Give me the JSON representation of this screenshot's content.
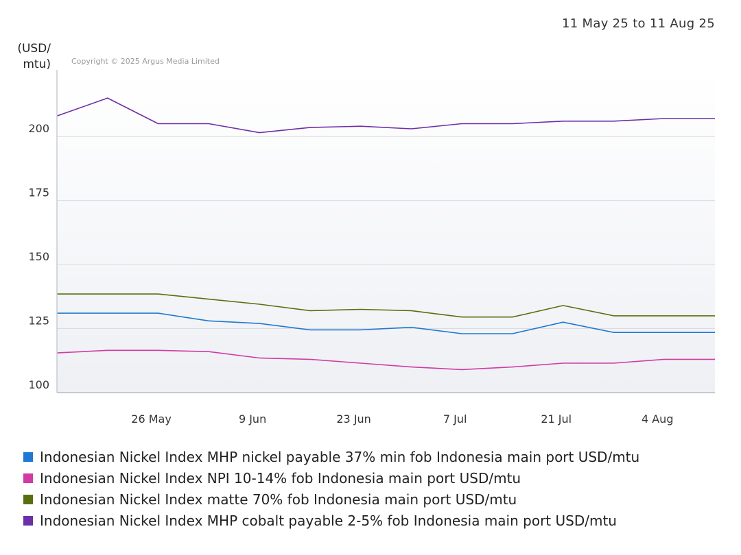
{
  "date_range": "11 May 25 to 11 Aug 25",
  "copyright": "Copyright © 2025 Argus Media Limited",
  "chart_data": {
    "type": "line",
    "ylabel": [
      "(USD/",
      "mtu)"
    ],
    "ylim": [
      100,
      226
    ],
    "y_ticks": [
      100,
      125,
      150,
      175,
      200
    ],
    "x_tick_labels": [
      "26 May",
      "9 Jun",
      "23 Jun",
      "7 Jul",
      "21 Jul",
      "4 Aug"
    ],
    "x_tick_positions": [
      2,
      4,
      6,
      8,
      10,
      12
    ],
    "x": [
      0,
      1,
      2,
      3,
      4,
      5,
      6,
      7,
      8,
      9,
      10,
      11,
      12,
      13
    ],
    "grid": "horizontal",
    "legend_position": "bottom",
    "series": [
      {
        "name": "Indonesian Nickel Index MHP nickel payable 37% min fob Indonesia main port USD/mtu",
        "color": "#1f78d1",
        "values": [
          131,
          131,
          131,
          128,
          127,
          124.5,
          124.5,
          125.5,
          123,
          123,
          127.5,
          123.5,
          123.5,
          123.5
        ]
      },
      {
        "name": "Indonesian Nickel Index NPI 10-14% fob Indonesia main port USD/mtu",
        "color": "#d23aa4",
        "values": [
          115.5,
          116.5,
          116.5,
          116,
          113.5,
          113,
          111.5,
          110,
          109,
          110,
          111.5,
          111.5,
          113,
          113
        ]
      },
      {
        "name": "Indonesian Nickel Index matte 70% fob Indonesia main port USD/mtu",
        "color": "#5b6e0f",
        "values": [
          138.5,
          138.5,
          138.5,
          136.5,
          134.5,
          132,
          132.5,
          132,
          129.5,
          129.5,
          134,
          130,
          130,
          130
        ]
      },
      {
        "name": "Indonesian Nickel Index MHP cobalt payable 2-5% fob Indonesia main port USD/mtu",
        "color": "#6b2fa8",
        "values": [
          208,
          215,
          205,
          205,
          201.5,
          203.5,
          204,
          203,
          205,
          205,
          206,
          206,
          207,
          207
        ]
      }
    ]
  }
}
